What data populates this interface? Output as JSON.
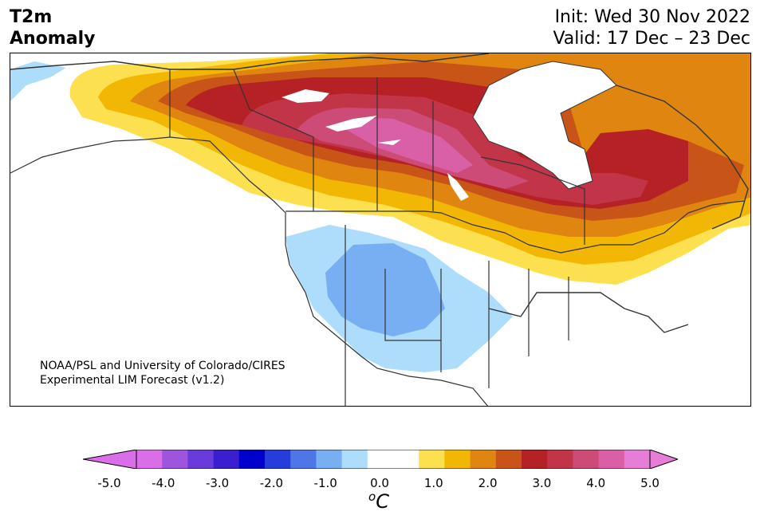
{
  "title": {
    "line1": "T2m",
    "line2": "Anomaly"
  },
  "init": "Init: Wed 30 Nov 2022",
  "valid": "Valid: 17 Dec – 23 Dec",
  "credit": {
    "line1": "NOAA/PSL and University of Colorado/CIRES",
    "line2": "Experimental LIM Forecast (v1.2)"
  },
  "colorbar": {
    "unit_base": "o",
    "unit_main": "C",
    "colors": [
      "#d96ee8",
      "#9e54dc",
      "#6a3bdb",
      "#3a1ecf",
      "#0000cd",
      "#263ddc",
      "#4f76e6",
      "#78aef2",
      "#aeddfb",
      "#ffffff",
      "#ffffff",
      "#fde050",
      "#f2b705",
      "#e08610",
      "#c85418",
      "#b52124",
      "#c23549",
      "#cd4b77",
      "#d960a6",
      "#e67ed8"
    ],
    "extend_low": "#d96ee8",
    "extend_high": "#e67ed8",
    "ticks": [
      "-5.0",
      "-4.0",
      "-3.0",
      "-2.0",
      "-1.0",
      "0.0",
      "1.0",
      "2.0",
      "3.0",
      "4.0",
      "5.0"
    ]
  }
}
